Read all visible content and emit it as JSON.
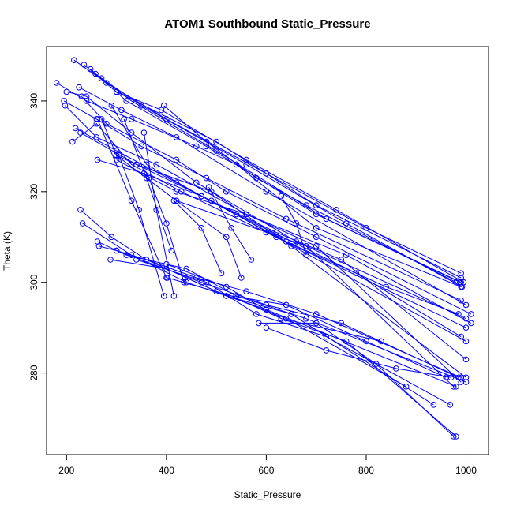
{
  "chart_data": {
    "type": "scatter",
    "title": "ATOM1 Southbound Static_Pressure",
    "xlabel": "Static_Pressure",
    "ylabel": "Theta (K)",
    "xlim": [
      160,
      1045
    ],
    "ylim": [
      262,
      352
    ],
    "x_ticks": [
      200,
      400,
      600,
      800,
      1000
    ],
    "y_ticks": [
      280,
      300,
      320,
      340
    ],
    "grid": false,
    "legend": "none",
    "series_color": "#0000ff",
    "marker": "open-circle",
    "series": [
      {
        "points": [
          [
            215,
            349
          ],
          [
            280,
            344
          ],
          [
            400,
            336
          ],
          [
            600,
            324
          ],
          [
            800,
            312
          ],
          [
            990,
            302
          ]
        ]
      },
      {
        "points": [
          [
            235,
            348
          ],
          [
            300,
            342
          ],
          [
            500,
            331
          ],
          [
            700,
            317
          ],
          [
            990,
            301
          ]
        ]
      },
      {
        "points": [
          [
            248,
            347
          ],
          [
            320,
            340
          ],
          [
            480,
            330
          ],
          [
            700,
            315
          ],
          [
            988,
            300
          ]
        ]
      },
      {
        "points": [
          [
            258,
            346
          ],
          [
            330,
            340
          ],
          [
            500,
            329
          ],
          [
            720,
            314
          ],
          [
            990,
            300
          ]
        ]
      },
      {
        "points": [
          [
            270,
            345
          ],
          [
            350,
            339
          ],
          [
            560,
            326
          ],
          [
            760,
            313
          ],
          [
            992,
            299
          ]
        ]
      },
      {
        "points": [
          [
            300,
            342
          ],
          [
            390,
            338
          ],
          [
            560,
            327
          ],
          [
            740,
            316
          ],
          [
            995,
            300
          ]
        ]
      },
      {
        "points": [
          [
            395,
            339
          ],
          [
            480,
            331
          ],
          [
            580,
            323
          ],
          [
            680,
            317
          ],
          [
            980,
            300
          ]
        ]
      },
      {
        "points": [
          [
            180,
            344
          ],
          [
            240,
            340
          ],
          [
            330,
            336
          ],
          [
            460,
            330
          ],
          [
            540,
            326
          ],
          [
            700,
            312
          ],
          [
            990,
            299
          ]
        ]
      },
      {
        "points": [
          [
            195,
            340
          ],
          [
            260,
            336
          ],
          [
            350,
            330
          ],
          [
            480,
            323
          ],
          [
            640,
            314
          ],
          [
            990,
            296
          ]
        ]
      },
      {
        "points": [
          [
            225,
            343
          ],
          [
            310,
            338
          ],
          [
            420,
            332
          ],
          [
            600,
            320
          ],
          [
            1000,
            295
          ]
        ]
      },
      {
        "points": [
          [
            230,
            341
          ],
          [
            280,
            335
          ],
          [
            420,
            327
          ],
          [
            520,
            320
          ],
          [
            700,
            310
          ],
          [
            1010,
            293
          ]
        ]
      },
      {
        "points": [
          [
            200,
            342
          ],
          [
            240,
            341
          ],
          [
            330,
            333
          ],
          [
            460,
            322
          ],
          [
            660,
            309
          ],
          [
            1000,
            292
          ]
        ]
      },
      {
        "points": [
          [
            197,
            339
          ],
          [
            260,
            332
          ],
          [
            380,
            326
          ],
          [
            560,
            315
          ],
          [
            760,
            306
          ],
          [
            1010,
            291
          ]
        ]
      },
      {
        "points": [
          [
            212,
            331
          ],
          [
            260,
            335
          ],
          [
            330,
            326
          ],
          [
            430,
            320
          ],
          [
            600,
            311
          ],
          [
            1000,
            290
          ]
        ]
      },
      {
        "points": [
          [
            218,
            334
          ],
          [
            300,
            329
          ],
          [
            420,
            322
          ],
          [
            540,
            315
          ],
          [
            780,
            302
          ],
          [
            990,
            288
          ]
        ]
      },
      {
        "points": [
          [
            228,
            333
          ],
          [
            340,
            326
          ],
          [
            490,
            318
          ],
          [
            620,
            310
          ],
          [
            1000,
            287
          ]
        ]
      },
      {
        "points": [
          [
            262,
            327
          ],
          [
            355,
            324
          ],
          [
            470,
            319
          ],
          [
            640,
            309
          ],
          [
            840,
            299
          ],
          [
            985,
            293
          ]
        ]
      },
      {
        "points": [
          [
            290,
            339
          ],
          [
            360,
            326
          ],
          [
            470,
            319
          ],
          [
            620,
            311
          ],
          [
            750,
            305
          ],
          [
            1000,
            283
          ]
        ]
      },
      {
        "points": [
          [
            300,
            328
          ],
          [
            340,
            326
          ],
          [
            490,
            320
          ],
          [
            650,
            308
          ],
          [
            1000,
            279
          ]
        ]
      },
      {
        "points": [
          [
            300,
            327
          ],
          [
            420,
            320
          ],
          [
            560,
            315
          ],
          [
            700,
            308
          ],
          [
            990,
            278
          ]
        ]
      },
      {
        "points": [
          [
            270,
            336
          ],
          [
            300,
            328
          ],
          [
            420,
            318
          ],
          [
            680,
            308
          ],
          [
            975,
            277
          ]
        ]
      },
      {
        "points": [
          [
            315,
            336
          ],
          [
            360,
            323
          ],
          [
            410,
            307
          ]
        ]
      },
      {
        "points": [
          [
            355,
            333
          ],
          [
            380,
            316
          ],
          [
            415,
            297
          ]
        ]
      },
      {
        "points": [
          [
            305,
            328
          ],
          [
            345,
            316
          ],
          [
            395,
            297
          ]
        ]
      },
      {
        "points": [
          [
            262,
            336
          ],
          [
            330,
            318
          ],
          [
            400,
            301
          ]
        ]
      },
      {
        "points": [
          [
            365,
            323
          ],
          [
            400,
            313
          ],
          [
            435,
            300
          ]
        ]
      },
      {
        "points": [
          [
            415,
            318
          ],
          [
            470,
            312
          ],
          [
            510,
            302
          ]
        ]
      },
      {
        "points": [
          [
            420,
            318
          ],
          [
            520,
            310
          ],
          [
            550,
            301
          ]
        ]
      },
      {
        "points": [
          [
            485,
            321
          ],
          [
            530,
            312
          ],
          [
            570,
            305
          ]
        ]
      },
      {
        "points": [
          [
            630,
            319
          ],
          [
            660,
            313
          ],
          [
            680,
            306
          ]
        ]
      },
      {
        "points": [
          [
            228,
            316
          ],
          [
            290,
            310
          ],
          [
            360,
            305
          ],
          [
            460,
            301
          ],
          [
            560,
            298
          ],
          [
            700,
            293
          ],
          [
            990,
            279
          ]
        ]
      },
      {
        "points": [
          [
            232,
            313
          ],
          [
            330,
            306
          ],
          [
            440,
            300
          ],
          [
            600,
            294
          ],
          [
            980,
            277
          ]
        ]
      },
      {
        "points": [
          [
            262,
            309
          ],
          [
            320,
            306
          ],
          [
            440,
            303
          ],
          [
            540,
            297
          ],
          [
            680,
            292
          ],
          [
            1000,
            278
          ]
        ]
      },
      {
        "points": [
          [
            265,
            308
          ],
          [
            300,
            307
          ],
          [
            470,
            300
          ],
          [
            600,
            295
          ],
          [
            750,
            291
          ],
          [
            985,
            279
          ]
        ]
      },
      {
        "points": [
          [
            288,
            305
          ],
          [
            400,
            303
          ],
          [
            500,
            298
          ],
          [
            640,
            292
          ],
          [
            880,
            277
          ]
        ]
      },
      {
        "points": [
          [
            300,
            307
          ],
          [
            360,
            305
          ],
          [
            520,
            297
          ],
          [
            650,
            293
          ],
          [
            935,
            273
          ]
        ]
      },
      {
        "points": [
          [
            340,
            305
          ],
          [
            480,
            300
          ],
          [
            580,
            293
          ],
          [
            720,
            288
          ],
          [
            968,
            273
          ]
        ]
      },
      {
        "points": [
          [
            400,
            304
          ],
          [
            520,
            299
          ],
          [
            630,
            292
          ],
          [
            760,
            287
          ],
          [
            980,
            266
          ]
        ]
      },
      {
        "points": [
          [
            402,
            301
          ],
          [
            530,
            297
          ],
          [
            640,
            295
          ],
          [
            800,
            287
          ],
          [
            960,
            279
          ]
        ]
      },
      {
        "points": [
          [
            530,
            297
          ],
          [
            630,
            292
          ],
          [
            830,
            287
          ]
        ]
      },
      {
        "points": [
          [
            600,
            290
          ],
          [
            720,
            285
          ],
          [
            860,
            281
          ],
          [
            970,
            279
          ]
        ]
      },
      {
        "points": [
          [
            585,
            291
          ],
          [
            700,
            291
          ],
          [
            820,
            282
          ],
          [
            975,
            266
          ]
        ]
      }
    ]
  }
}
